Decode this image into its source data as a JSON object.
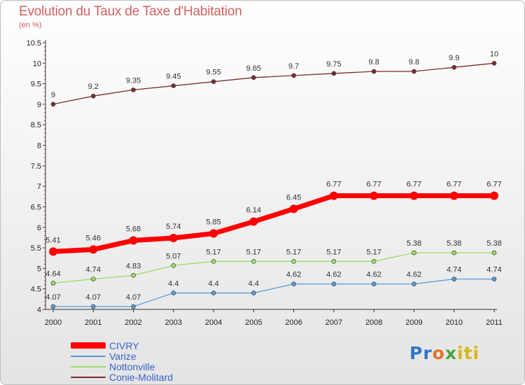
{
  "title": "Evolution du Taux de Taxe d'Habitation",
  "unit": "(en %)",
  "logo": "Proxiti",
  "chart_data": {
    "type": "line",
    "x": [
      "2000",
      "2001",
      "2002",
      "2003",
      "2004",
      "2005",
      "2006",
      "2007",
      "2008",
      "2009",
      "2010",
      "2011"
    ],
    "yticks": [
      "4",
      "4.5",
      "5",
      "5.5",
      "6",
      "6.5",
      "7",
      "7.5",
      "8",
      "8.5",
      "9",
      "9.5",
      "10",
      "10.5"
    ],
    "ylim": [
      4,
      10.5
    ],
    "grid": false,
    "legend_position": "bottom-left",
    "series": [
      {
        "name": "CIVRY",
        "color": "#ff0000",
        "values": [
          5.41,
          5.46,
          5.68,
          5.74,
          5.85,
          6.14,
          6.45,
          6.77,
          6.77,
          6.77,
          6.77,
          6.77
        ],
        "labels": [
          "5.41",
          "5.46",
          "5.68",
          "5.74",
          "5.85",
          "6.14",
          "6.45",
          "6.77",
          "6.77",
          "6.77",
          "6.77",
          "6.77"
        ]
      },
      {
        "name": "Varize",
        "color": "#5b9bd5",
        "values": [
          4.07,
          4.07,
          4.07,
          4.4,
          4.4,
          4.4,
          4.62,
          4.62,
          4.62,
          4.62,
          4.74,
          4.74
        ],
        "labels": [
          "4.07",
          "4.07",
          "4.07",
          "4.4",
          "4.4",
          "4.4",
          "4.62",
          "4.62",
          "4.62",
          "4.62",
          "4.74",
          "4.74"
        ]
      },
      {
        "name": "Nottonville",
        "color": "#99dd66",
        "values": [
          4.64,
          4.74,
          4.83,
          5.07,
          5.17,
          5.17,
          5.17,
          5.17,
          5.17,
          5.38,
          5.38,
          5.38
        ],
        "labels": [
          "4.64",
          "4.74",
          "4.83",
          "5.07",
          "5.17",
          "5.17",
          "5.17",
          "5.17",
          "5.17",
          "5.38",
          "5.38",
          "5.38"
        ]
      },
      {
        "name": "Conie-Molitard",
        "color": "#7a2e2e",
        "values": [
          9,
          9.2,
          9.35,
          9.45,
          9.55,
          9.65,
          9.7,
          9.75,
          9.8,
          9.8,
          9.9,
          10
        ],
        "labels": [
          "9",
          "9.2",
          "9.35",
          "9.45",
          "9.55",
          "9.65",
          "9.7",
          "9.75",
          "9.8",
          "9.8",
          "9.9",
          "10"
        ]
      }
    ]
  }
}
